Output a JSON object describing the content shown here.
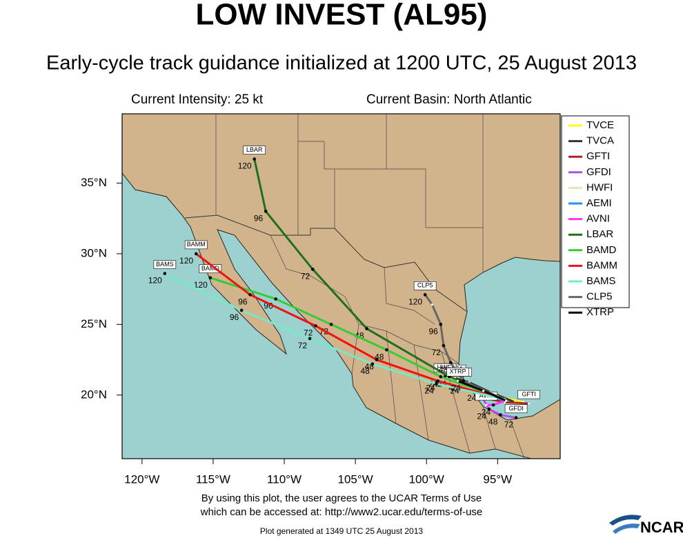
{
  "header": {
    "title": "LOW INVEST (AL95)",
    "subtitle": "Early-cycle track guidance initialized at 1200 UTC, 25 August 2013",
    "intensity": "Current Intensity: 25 kt",
    "basin": "Current Basin: North Atlantic"
  },
  "map": {
    "lonlim": [
      -121.4,
      -90.6
    ],
    "latlim": [
      15.5,
      39.9
    ],
    "lat_ticks": [
      {
        "value": 35,
        "label": "35°N"
      },
      {
        "value": 30,
        "label": "30°N"
      },
      {
        "value": 25,
        "label": "25°N"
      },
      {
        "value": 20,
        "label": "20°N"
      }
    ],
    "lon_ticks": [
      {
        "value": -120,
        "label": "120°W"
      },
      {
        "value": -115,
        "label": "115°W"
      },
      {
        "value": -110,
        "label": "110°W"
      },
      {
        "value": -105,
        "label": "105°W"
      },
      {
        "value": -100,
        "label": "100°W"
      },
      {
        "value": -95,
        "label": "95°W"
      }
    ],
    "tracks": [
      {
        "name": "TVCE",
        "color": "#ffff00",
        "points": [
          {
            "lon": -93.2,
            "lat": 19.5
          },
          {
            "lon": -95.5,
            "lat": 20.0
          },
          {
            "lon": -97.5,
            "lat": 20.8
          },
          {
            "lon": -98.5,
            "lat": 21.3
          }
        ]
      },
      {
        "name": "TVCA",
        "color": "#333333",
        "points": [
          {
            "lon": -93.8,
            "lat": 19.5
          },
          {
            "lon": -95.5,
            "lat": 20.2
          },
          {
            "lon": -97.0,
            "lat": 20.9
          },
          {
            "lon": -98.0,
            "lat": 21.2
          }
        ]
      },
      {
        "name": "GFTI",
        "color": "#b22222",
        "points": [
          {
            "lon": -96.0,
            "lat": 19.8
          },
          {
            "lon": -94.5,
            "lat": 19.5
          },
          {
            "lon": -92.8,
            "lat": 19.4
          }
        ]
      },
      {
        "name": "GFDI",
        "color": "#b44ee8",
        "points": [
          {
            "lon": -96.0,
            "lat": 19.7
          },
          {
            "lon": -95.6,
            "lat": 19.0,
            "hour": 24
          },
          {
            "lon": -94.8,
            "lat": 18.6,
            "hour": 48
          },
          {
            "lon": -93.7,
            "lat": 18.4,
            "hour": 72
          }
        ]
      },
      {
        "name": "HWFI",
        "color": "#f5deb3",
        "points": [
          {
            "lon": -95.5,
            "lat": 19.8
          },
          {
            "lon": -97.5,
            "lat": 20.8,
            "hour": 24
          },
          {
            "lon": -98.7,
            "lat": 21.3,
            "hour": 48
          }
        ]
      },
      {
        "name": "AEMI",
        "color": "#1e90ff",
        "points": [
          {
            "lon": -94.5,
            "lat": 19.6
          },
          {
            "lon": -96.3,
            "lat": 20.3,
            "hour": 24
          },
          {
            "lon": -97.6,
            "lat": 21.0,
            "hour": 48
          }
        ]
      },
      {
        "name": "AVNI",
        "color": "#ff33ff",
        "points": [
          {
            "lon": -94.5,
            "lat": 19.6
          },
          {
            "lon": -95.3,
            "lat": 19.3,
            "hour": 24
          },
          {
            "lon": -95.8,
            "lat": 19.3
          }
        ]
      },
      {
        "name": "LBAR",
        "color": "#1f6f1f",
        "points": [
          {
            "lon": -94.5,
            "lat": 19.7
          },
          {
            "lon": -98.4,
            "lat": 21.3,
            "hour": 24
          },
          {
            "lon": -104.2,
            "lat": 24.7,
            "hour": 48
          },
          {
            "lon": -108.0,
            "lat": 28.9,
            "hour": 72
          },
          {
            "lon": -111.3,
            "lat": 33.0,
            "hour": 96
          },
          {
            "lon": -112.1,
            "lat": 36.7,
            "hour": 120
          }
        ]
      },
      {
        "name": "BAMD",
        "color": "#33cc33",
        "points": [
          {
            "lon": -94.5,
            "lat": 19.7
          },
          {
            "lon": -99.0,
            "lat": 21.3,
            "hour": 24
          },
          {
            "lon": -102.8,
            "lat": 23.2,
            "hour": 48
          },
          {
            "lon": -106.7,
            "lat": 25.0,
            "hour": 72
          },
          {
            "lon": -110.6,
            "lat": 26.8,
            "hour": 96
          },
          {
            "lon": -115.2,
            "lat": 28.3,
            "hour": 120
          }
        ]
      },
      {
        "name": "BAMM",
        "color": "#ee1111",
        "points": [
          {
            "lon": -94.5,
            "lat": 19.7
          },
          {
            "lon": -99.2,
            "lat": 21.0,
            "hour": 24
          },
          {
            "lon": -103.5,
            "lat": 22.5,
            "hour": 48
          },
          {
            "lon": -107.8,
            "lat": 24.9,
            "hour": 72
          },
          {
            "lon": -112.4,
            "lat": 27.1,
            "hour": 96
          },
          {
            "lon": -116.2,
            "lat": 30.0,
            "hour": 120
          }
        ]
      },
      {
        "name": "BAMS",
        "color": "#77e8c8",
        "points": [
          {
            "lon": -94.5,
            "lat": 19.7
          },
          {
            "lon": -99.3,
            "lat": 20.8,
            "hour": 24
          },
          {
            "lon": -103.8,
            "lat": 22.2,
            "hour": 48
          },
          {
            "lon": -108.2,
            "lat": 24.0,
            "hour": 72
          },
          {
            "lon": -113.0,
            "lat": 26.0,
            "hour": 96
          },
          {
            "lon": -118.4,
            "lat": 28.6,
            "hour": 120
          }
        ]
      },
      {
        "name": "CLP5",
        "color": "#666666",
        "points": [
          {
            "lon": -95.0,
            "lat": 19.9
          },
          {
            "lon": -97.4,
            "lat": 21.0,
            "hour": 24
          },
          {
            "lon": -98.3,
            "lat": 22.3,
            "hour": 48
          },
          {
            "lon": -98.8,
            "lat": 23.5,
            "hour": 72
          },
          {
            "lon": -99.0,
            "lat": 25.0,
            "hour": 96
          },
          {
            "lon": -99.6,
            "lat": 26.4
          },
          {
            "lon": -100.1,
            "lat": 27.1,
            "hour": 120
          }
        ]
      },
      {
        "name": "XTRP",
        "color": "#000000",
        "points": [
          {
            "lon": -94.4,
            "lat": 19.6
          },
          {
            "lon": -96.0,
            "lat": 20.3
          },
          {
            "lon": -97.8,
            "lat": 21.0
          }
        ]
      }
    ]
  },
  "footer": {
    "terms_1": "By using this plot, the user agrees to the UCAR Terms of Use",
    "terms_2": "which can be accessed at: http://www2.ucar.edu/terms-of-use",
    "generated": "Plot generated at 1349 UTC   25 August 2013",
    "logo": "NCAR"
  }
}
